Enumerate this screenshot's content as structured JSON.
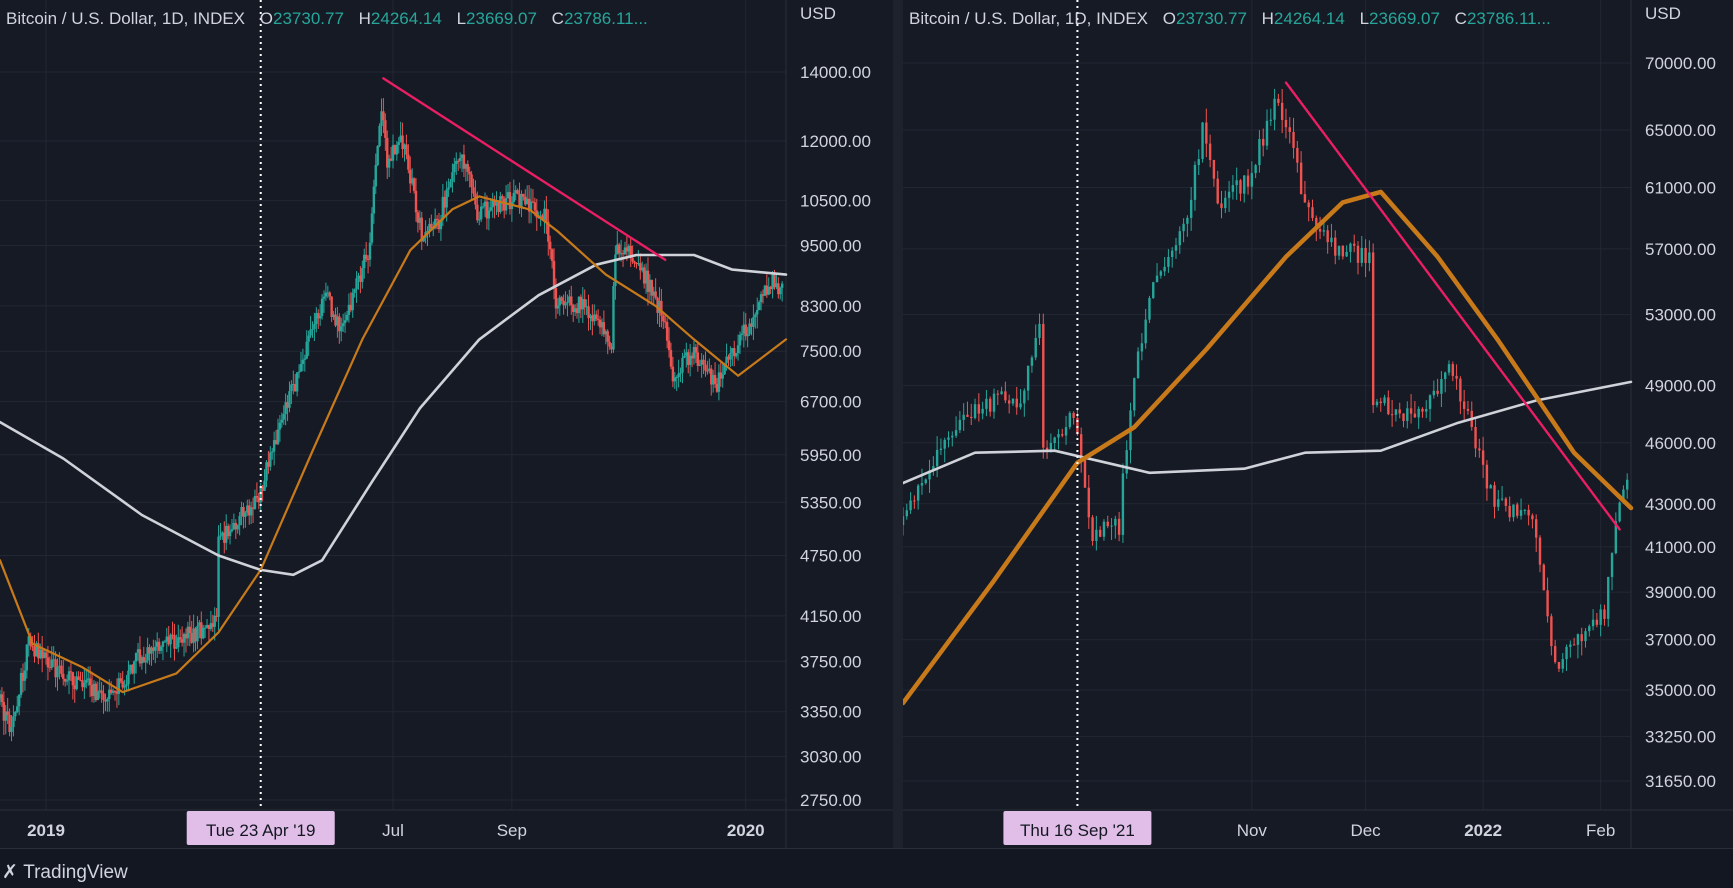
{
  "panels": [
    {
      "header": {
        "symbol": "Bitcoin / U.S. Dollar, 1D, INDEX",
        "o_label": "O",
        "o": "23730.77",
        "h_label": "H",
        "h": "24264.14",
        "l_label": "L",
        "l": "23669.07",
        "c_label": "C",
        "c": "23786.11..."
      },
      "currency": "USD",
      "crosshair_label": "Tue 23 Apr '19"
    },
    {
      "header": {
        "symbol": "Bitcoin / U.S. Dollar, 1D, INDEX",
        "o_label": "O",
        "o": "23730.77",
        "h_label": "H",
        "h": "24264.14",
        "l_label": "L",
        "l": "23669.07",
        "c_label": "C",
        "c": "23786.11..."
      },
      "currency": "USD",
      "crosshair_label": "Thu 16 Sep '21"
    }
  ],
  "brand": "TradingView",
  "colors": {
    "up": "#26a69a",
    "down": "#ef5350",
    "ma50": "#c87a1a",
    "ma200": "#cfd2d8",
    "trendline": "#e91e63",
    "crosshair_tag": "#e1bee7"
  },
  "chart_data": [
    {
      "type": "candlestick",
      "scale": "log",
      "y_ticks": [
        14000,
        12000,
        10500,
        9500,
        8300,
        7500,
        6700,
        5950,
        5350,
        4750,
        4150,
        3750,
        3350,
        3030,
        2750
      ],
      "y_tick_labels": [
        "14000.00",
        "12000.00",
        "10500.00",
        "9500.00",
        "8300.00",
        "7500.00",
        "6700.00",
        "5950.00",
        "5350.00",
        "4750.00",
        "4150.00",
        "3750.00",
        "3350.00",
        "3030.00",
        "2750.00"
      ],
      "ylim": [
        2700,
        15500
      ],
      "x_ticks": [
        "2019",
        "Jul",
        "Sep",
        "2020"
      ],
      "x_range": [
        "2018-12-08",
        "2020-01-22"
      ],
      "x_tick_dates": [
        "2019-01-01",
        "2019-07-01",
        "2019-09-01",
        "2020-01-01"
      ],
      "crosshair_date": "2019-04-23",
      "price_path": [
        [
          "2018-12-08",
          3450
        ],
        [
          "2018-12-15",
          3200
        ],
        [
          "2018-12-24",
          3900
        ],
        [
          "2019-01-10",
          3650
        ],
        [
          "2019-02-05",
          3450
        ],
        [
          "2019-02-20",
          3800
        ],
        [
          "2019-03-15",
          3950
        ],
        [
          "2019-04-01",
          4100
        ],
        [
          "2019-04-02",
          4900
        ],
        [
          "2019-04-23",
          5400
        ],
        [
          "2019-05-12",
          7000
        ],
        [
          "2019-05-28",
          8500
        ],
        [
          "2019-06-05",
          7800
        ],
        [
          "2019-06-20",
          9500
        ],
        [
          "2019-06-26",
          13000
        ],
        [
          "2019-06-29",
          11500
        ],
        [
          "2019-07-07",
          12000
        ],
        [
          "2019-07-17",
          9700
        ],
        [
          "2019-07-25",
          9900
        ],
        [
          "2019-08-06",
          11800
        ],
        [
          "2019-08-15",
          10200
        ],
        [
          "2019-09-05",
          10600
        ],
        [
          "2019-09-20",
          10100
        ],
        [
          "2019-09-25",
          8400
        ],
        [
          "2019-10-10",
          8300
        ],
        [
          "2019-10-24",
          7600
        ],
        [
          "2019-10-26",
          9500
        ],
        [
          "2019-11-05",
          9300
        ],
        [
          "2019-11-20",
          8100
        ],
        [
          "2019-11-25",
          7000
        ],
        [
          "2019-12-05",
          7500
        ],
        [
          "2019-12-18",
          6900
        ],
        [
          "2019-12-20",
          7200
        ],
        [
          "2020-01-08",
          8200
        ],
        [
          "2020-01-15",
          8800
        ],
        [
          "2020-01-22",
          8600
        ]
      ],
      "ma_fast": [
        [
          "2018-12-08",
          4700
        ],
        [
          "2018-12-25",
          3900
        ],
        [
          "2019-01-20",
          3700
        ],
        [
          "2019-02-10",
          3500
        ],
        [
          "2019-03-10",
          3650
        ],
        [
          "2019-04-01",
          4000
        ],
        [
          "2019-04-23",
          4600
        ],
        [
          "2019-05-20",
          6000
        ],
        [
          "2019-06-15",
          7700
        ],
        [
          "2019-07-10",
          9400
        ],
        [
          "2019-08-01",
          10300
        ],
        [
          "2019-08-15",
          10600
        ],
        [
          "2019-09-10",
          10300
        ],
        [
          "2019-09-25",
          9800
        ],
        [
          "2019-10-20",
          8900
        ],
        [
          "2019-11-15",
          8300
        ],
        [
          "2019-12-05",
          7700
        ],
        [
          "2019-12-28",
          7100
        ],
        [
          "2020-01-22",
          7700
        ]
      ],
      "ma_slow": [
        [
          "2018-12-08",
          6400
        ],
        [
          "2019-01-10",
          5900
        ],
        [
          "2019-02-20",
          5200
        ],
        [
          "2019-04-01",
          4750
        ],
        [
          "2019-04-23",
          4600
        ],
        [
          "2019-05-10",
          4550
        ],
        [
          "2019-05-25",
          4700
        ],
        [
          "2019-06-20",
          5600
        ],
        [
          "2019-07-15",
          6600
        ],
        [
          "2019-08-15",
          7700
        ],
        [
          "2019-09-15",
          8500
        ],
        [
          "2019-10-15",
          9100
        ],
        [
          "2019-11-05",
          9300
        ],
        [
          "2019-12-05",
          9300
        ],
        [
          "2019-12-25",
          9000
        ],
        [
          "2020-01-22",
          8900
        ]
      ],
      "trendline": [
        [
          "2019-06-26",
          13800
        ],
        [
          "2019-11-20",
          9200
        ]
      ]
    },
    {
      "type": "candlestick",
      "scale": "log",
      "y_ticks": [
        70000,
        65000,
        61000,
        57000,
        53000,
        49000,
        46000,
        43000,
        41000,
        39000,
        37000,
        35000,
        33250,
        31650
      ],
      "y_tick_labels": [
        "70000.00",
        "65000.00",
        "61000.00",
        "57000.00",
        "53000.00",
        "49000.00",
        "46000.00",
        "43000.00",
        "41000.00",
        "39000.00",
        "37000.00",
        "35000.00",
        "33250.00",
        "31650.00"
      ],
      "ylim": [
        30900,
        73000
      ],
      "x_ticks": [
        "Nov",
        "Dec",
        "2022",
        "Feb"
      ],
      "x_range": [
        "2021-08-01",
        "2022-02-09"
      ],
      "x_tick_dates": [
        "2021-11-01",
        "2021-12-01",
        "2022-01-01",
        "2022-02-01"
      ],
      "crosshair_date": "2021-09-16",
      "price_path": [
        [
          "2021-08-01",
          42000
        ],
        [
          "2021-08-10",
          45000
        ],
        [
          "2021-08-20",
          47500
        ],
        [
          "2021-08-28",
          48500
        ],
        [
          "2021-09-02",
          48000
        ],
        [
          "2021-09-07",
          52000
        ],
        [
          "2021-09-08",
          45500
        ],
        [
          "2021-09-16",
          47500
        ],
        [
          "2021-09-21",
          41500
        ],
        [
          "2021-09-28",
          42000
        ],
        [
          "2021-10-01",
          48000
        ],
        [
          "2021-10-06",
          54500
        ],
        [
          "2021-10-15",
          58000
        ],
        [
          "2021-10-20",
          65000
        ],
        [
          "2021-10-24",
          60000
        ],
        [
          "2021-11-01",
          61500
        ],
        [
          "2021-11-09",
          67500
        ],
        [
          "2021-11-16",
          60000
        ],
        [
          "2021-11-24",
          57000
        ],
        [
          "2021-12-03",
          56500
        ],
        [
          "2021-12-04",
          48000
        ],
        [
          "2021-12-15",
          47500
        ],
        [
          "2021-12-25",
          50000
        ],
        [
          "2021-12-30",
          46500
        ],
        [
          "2022-01-05",
          43000
        ],
        [
          "2022-01-15",
          42500
        ],
        [
          "2022-01-21",
          36000
        ],
        [
          "2022-01-27",
          37000
        ],
        [
          "2022-02-03",
          38000
        ],
        [
          "2022-02-06",
          42500
        ],
        [
          "2022-02-09",
          43800
        ]
      ],
      "ma_fast": [
        [
          "2021-08-01",
          34500
        ],
        [
          "2021-08-25",
          39500
        ],
        [
          "2021-09-16",
          45000
        ],
        [
          "2021-10-01",
          46800
        ],
        [
          "2021-10-20",
          51000
        ],
        [
          "2021-11-10",
          56500
        ],
        [
          "2021-11-25",
          60000
        ],
        [
          "2021-12-05",
          60700
        ],
        [
          "2021-12-20",
          56500
        ],
        [
          "2022-01-05",
          51500
        ],
        [
          "2022-01-25",
          45500
        ],
        [
          "2022-02-09",
          42800
        ]
      ],
      "ma_slow": [
        [
          "2021-08-01",
          44000
        ],
        [
          "2021-08-20",
          45500
        ],
        [
          "2021-09-10",
          45600
        ],
        [
          "2021-10-05",
          44500
        ],
        [
          "2021-10-30",
          44700
        ],
        [
          "2021-11-15",
          45500
        ],
        [
          "2021-12-05",
          45600
        ],
        [
          "2021-12-25",
          47000
        ],
        [
          "2022-01-15",
          48200
        ],
        [
          "2022-02-09",
          49200
        ]
      ],
      "trendline": [
        [
          "2021-11-10",
          68500
        ],
        [
          "2022-02-06",
          41800
        ]
      ]
    }
  ]
}
